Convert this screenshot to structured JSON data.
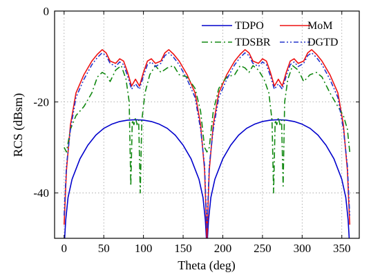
{
  "chart_data": {
    "type": "line",
    "xlabel": "Theta (deg)",
    "ylabel": "RCS (dBsm)",
    "xlim": [
      -12,
      372
    ],
    "ylim": [
      -50,
      0
    ],
    "xticks": [
      0,
      50,
      100,
      150,
      200,
      250,
      300,
      350
    ],
    "yticks": [
      0,
      -20,
      -40
    ],
    "grid": true,
    "legend_position": "top-right",
    "series": [
      {
        "name": "TDPO",
        "color": "#0000cc",
        "style": "solid",
        "x": [
          0,
          2,
          5,
          10,
          20,
          30,
          40,
          50,
          60,
          70,
          80,
          90,
          100,
          110,
          120,
          130,
          140,
          150,
          160,
          170,
          175,
          178,
          180,
          182,
          185,
          190,
          200,
          210,
          220,
          230,
          240,
          250,
          260,
          270,
          280,
          290,
          300,
          310,
          320,
          330,
          340,
          350,
          355,
          358,
          360
        ],
        "y": [
          -52,
          -46,
          -41,
          -37,
          -32.5,
          -29.5,
          -27.3,
          -25.8,
          -24.9,
          -24.3,
          -24.0,
          -23.9,
          -24.0,
          -24.3,
          -24.9,
          -25.8,
          -27.3,
          -29.5,
          -32.5,
          -37,
          -41,
          -46,
          -52,
          -46,
          -41,
          -37,
          -32.5,
          -29.5,
          -27.3,
          -25.8,
          -24.9,
          -24.3,
          -24.0,
          -23.9,
          -24.0,
          -24.3,
          -24.9,
          -25.8,
          -27.3,
          -29.5,
          -32.5,
          -37,
          -41,
          -46,
          -52
        ]
      },
      {
        "name": "MoM",
        "color": "#ee1111",
        "style": "solid",
        "x": [
          0,
          3,
          8,
          15,
          25,
          35,
          42,
          48,
          53,
          58,
          65,
          70,
          75,
          80,
          85,
          90,
          95,
          100,
          105,
          110,
          115,
          122,
          127,
          132,
          138,
          145,
          155,
          165,
          172,
          177,
          180,
          183,
          188,
          195,
          205,
          215,
          222,
          228,
          233,
          238,
          245,
          250,
          255,
          260,
          265,
          270,
          275,
          280,
          285,
          290,
          295,
          302,
          307,
          312,
          318,
          325,
          335,
          345,
          352,
          357,
          360
        ],
        "y": [
          -47,
          -35,
          -25,
          -18,
          -14,
          -11,
          -9.5,
          -8.5,
          -9.2,
          -11,
          -11.5,
          -10.5,
          -11,
          -13.5,
          -16.5,
          -15.0,
          -16.5,
          -13.5,
          -11,
          -10.5,
          -11.5,
          -11,
          -9.2,
          -8.5,
          -9.5,
          -11,
          -14,
          -18,
          -25,
          -35,
          -50,
          -35,
          -25,
          -18,
          -14,
          -11,
          -9.5,
          -8.5,
          -9.2,
          -11,
          -11.5,
          -10.5,
          -11,
          -13.5,
          -16.5,
          -15.0,
          -16.5,
          -13.5,
          -11,
          -10.5,
          -11.5,
          -11,
          -9.2,
          -8.5,
          -9.5,
          -11,
          -14,
          -18,
          -25,
          -35,
          -47
        ]
      },
      {
        "name": "TDSBR",
        "color": "#118811",
        "style": "dashdot",
        "x": [
          0,
          3,
          8,
          15,
          25,
          35,
          42,
          48,
          53,
          58,
          65,
          72,
          78,
          82,
          84,
          86,
          88,
          90,
          92,
          94,
          96,
          98,
          102,
          108,
          115,
          122,
          130,
          138,
          145,
          155,
          165,
          172,
          177,
          180,
          183,
          188,
          195,
          205,
          215,
          222,
          228,
          233,
          238,
          245,
          252,
          258,
          262,
          264,
          266,
          268,
          270,
          272,
          274,
          276,
          278,
          282,
          288,
          295,
          302,
          310,
          318,
          325,
          335,
          345,
          352,
          357,
          360
        ],
        "y": [
          -30,
          -31,
          -26,
          -23,
          -21,
          -18,
          -14.5,
          -13.5,
          -14,
          -15.5,
          -13,
          -12,
          -15,
          -20,
          -38.5,
          -24,
          -25,
          -23.5,
          -25,
          -24,
          -40,
          -24,
          -18,
          -14,
          -12,
          -13.5,
          -12.5,
          -12,
          -14,
          -14.5,
          -17,
          -22,
          -30,
          -31,
          -30,
          -22,
          -17,
          -14.5,
          -14,
          -12,
          -12.5,
          -13.5,
          -12,
          -13,
          -15,
          -18,
          -24,
          -40,
          -24,
          -25,
          -23.5,
          -25,
          -24,
          -38.5,
          -20,
          -15,
          -12,
          -13,
          -15.5,
          -14,
          -13.5,
          -14.5,
          -18,
          -21,
          -23,
          -26,
          -31
        ]
      },
      {
        "name": "DGTD",
        "color": "#2233cc",
        "style": "dashdotdot",
        "x": [
          0,
          3,
          8,
          15,
          25,
          35,
          42,
          48,
          53,
          58,
          65,
          70,
          75,
          80,
          85,
          90,
          95,
          100,
          105,
          110,
          115,
          122,
          127,
          132,
          138,
          145,
          155,
          165,
          172,
          177,
          180,
          183,
          188,
          195,
          205,
          215,
          222,
          228,
          233,
          238,
          245,
          250,
          255,
          260,
          265,
          270,
          275,
          280,
          285,
          290,
          295,
          302,
          307,
          312,
          318,
          325,
          335,
          345,
          352,
          357,
          360
        ],
        "y": [
          -45,
          -34,
          -26,
          -19,
          -15,
          -11.8,
          -10.2,
          -9.2,
          -9.8,
          -11.5,
          -12.2,
          -11.2,
          -11.8,
          -14.3,
          -17.2,
          -16,
          -17.2,
          -14.3,
          -11.8,
          -11.2,
          -12.2,
          -11.5,
          -9.8,
          -9.2,
          -10.2,
          -11.8,
          -15,
          -19,
          -26,
          -34,
          -48,
          -34,
          -26,
          -19,
          -15,
          -11.8,
          -10.2,
          -9.2,
          -9.8,
          -11.5,
          -12.2,
          -11.2,
          -11.8,
          -14.3,
          -17.2,
          -16,
          -17.2,
          -14.3,
          -11.8,
          -11.2,
          -12.2,
          -11.5,
          -9.8,
          -9.2,
          -10.2,
          -11.8,
          -15,
          -19,
          -26,
          -34,
          -45
        ]
      }
    ]
  }
}
